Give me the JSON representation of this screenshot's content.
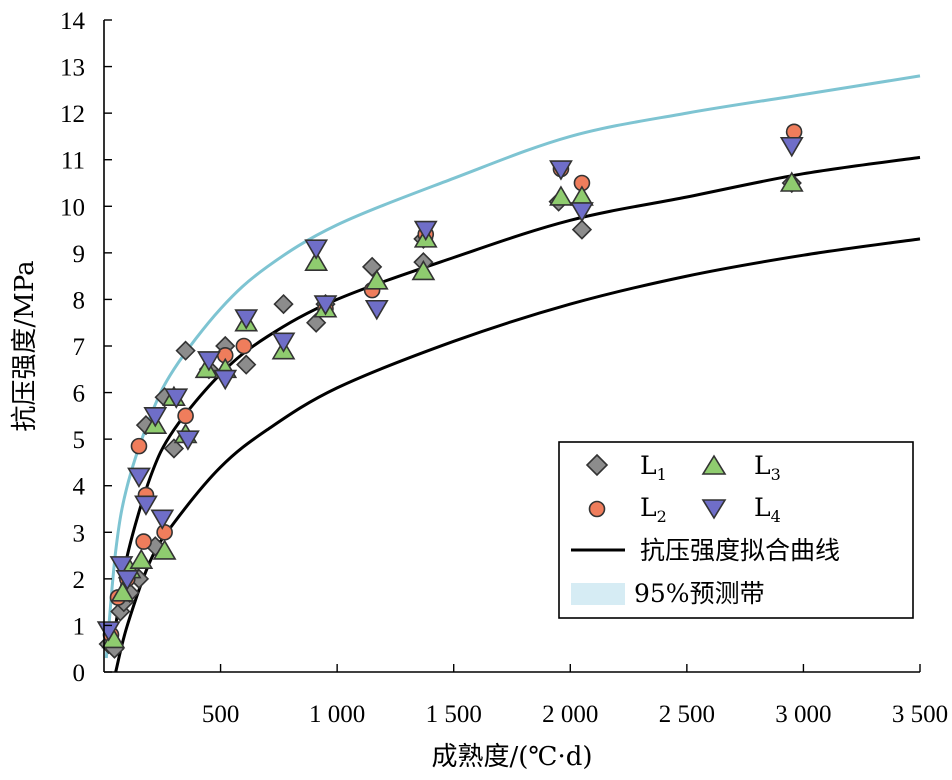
{
  "chart_data": {
    "type": "scatter",
    "title": "",
    "xlabel": "成熟度/(℃·d)",
    "ylabel": "抗压强度/MPa",
    "xlim": [
      0,
      3500
    ],
    "ylim": [
      0,
      14
    ],
    "xticks": [
      500,
      1000,
      1500,
      2000,
      2500,
      3000,
      3500
    ],
    "xtick_labels": [
      "500",
      "1 000",
      "1 500",
      "2 000",
      "2 500",
      "3 000",
      "3 500"
    ],
    "yticks": [
      0,
      1,
      2,
      3,
      4,
      5,
      6,
      7,
      8,
      9,
      10,
      11,
      12,
      13,
      14
    ],
    "ytick_labels": [
      "0",
      "1",
      "2",
      "3",
      "4",
      "5",
      "6",
      "7",
      "8",
      "9",
      "10",
      "11",
      "12",
      "13",
      "14"
    ],
    "grid": false,
    "legend_position": "bottom-right",
    "colors": {
      "L1": "#8c8c8c",
      "L2": "#ef7d5c",
      "L3": "#8fcc6f",
      "L4": "#6f6ec8",
      "fit": "#000000",
      "band": "#7ec4d2",
      "band_fill": "#d6ecf4"
    },
    "series": [
      {
        "name": "L",
        "subscript": "1",
        "marker": "diamond",
        "x": [
          20,
          45,
          70,
          85,
          110,
          130,
          150,
          180,
          220,
          260,
          300,
          350,
          450,
          520,
          610,
          770,
          910,
          950,
          1150,
          1370,
          1370,
          1950,
          2050,
          2950
        ],
        "y": [
          0.6,
          0.5,
          1.3,
          1.5,
          1.7,
          2.1,
          2.0,
          5.3,
          2.7,
          5.9,
          4.8,
          6.9,
          6.5,
          7.0,
          6.6,
          7.9,
          7.5,
          7.9,
          8.7,
          8.8,
          9.3,
          10.1,
          9.5,
          10.5
        ]
      },
      {
        "name": "L",
        "subscript": "2",
        "marker": "circle",
        "x": [
          30,
          60,
          100,
          150,
          170,
          180,
          260,
          350,
          520,
          600,
          950,
          1150,
          1380,
          1960,
          2050,
          2960
        ],
        "y": [
          0.8,
          1.6,
          2.0,
          4.85,
          2.8,
          3.8,
          3.0,
          5.5,
          6.8,
          7.0,
          7.8,
          8.2,
          9.4,
          10.8,
          10.5,
          11.6
        ]
      },
      {
        "name": "L",
        "subscript": "3",
        "marker": "triangle-up",
        "x": [
          40,
          80,
          110,
          160,
          220,
          260,
          300,
          350,
          440,
          520,
          610,
          770,
          910,
          950,
          1170,
          1370,
          1380,
          1960,
          2050,
          2950
        ],
        "y": [
          0.7,
          1.7,
          2.2,
          2.4,
          5.3,
          2.6,
          5.9,
          5.1,
          6.5,
          6.5,
          7.5,
          6.9,
          8.8,
          7.8,
          8.4,
          8.6,
          9.3,
          10.2,
          10.2,
          10.5
        ]
      },
      {
        "name": "L",
        "subscript": "4",
        "marker": "triangle-down",
        "x": [
          20,
          75,
          100,
          150,
          180,
          220,
          250,
          310,
          360,
          450,
          520,
          610,
          770,
          910,
          950,
          1170,
          1380,
          1960,
          2050,
          2950
        ],
        "y": [
          0.9,
          2.3,
          2.0,
          4.2,
          3.6,
          5.5,
          3.3,
          5.9,
          5.0,
          6.7,
          6.3,
          7.6,
          7.1,
          9.1,
          7.9,
          7.8,
          9.5,
          10.8,
          9.9,
          11.3
        ]
      }
    ],
    "fit_curve": {
      "name": "抗压强度拟合曲线",
      "x": [
        50,
        100,
        200,
        300,
        500,
        700,
        1000,
        1500,
        2000,
        2500,
        3000,
        3500
      ],
      "upper_y": [
        1.0,
        2.5,
        4.2,
        5.2,
        6.4,
        7.2,
        8.0,
        8.9,
        9.7,
        10.2,
        10.7,
        11.05
      ],
      "lower_y": [
        0.0,
        1.0,
        2.4,
        3.2,
        4.4,
        5.2,
        6.1,
        7.1,
        7.9,
        8.5,
        8.95,
        9.3
      ]
    },
    "prediction_band": {
      "name": "95%预测带",
      "x": [
        10,
        50,
        100,
        200,
        300,
        500,
        700,
        1000,
        1500,
        2000,
        2500,
        3000,
        3500
      ],
      "upper_y": [
        0.3,
        2.6,
        4.0,
        5.5,
        6.5,
        7.8,
        8.7,
        9.6,
        10.6,
        11.5,
        12.0,
        12.4,
        12.8
      ]
    }
  }
}
